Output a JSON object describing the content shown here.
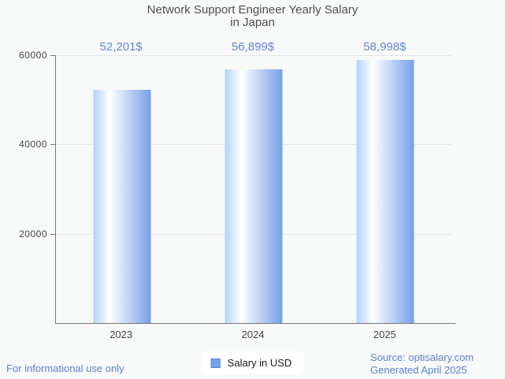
{
  "chart_data": {
    "type": "bar",
    "title": "Network Support Engineer Yearly Salary in Japan",
    "title_lines": [
      "Network Support Engineer Yearly Salary",
      "in Japan"
    ],
    "categories": [
      "2023",
      "2024",
      "2025"
    ],
    "series": [
      {
        "name": "Salary in USD",
        "values": [
          52201,
          56899,
          58998
        ]
      }
    ],
    "value_labels": [
      "52,201$",
      "56,899$",
      "58,998$"
    ],
    "xlabel": "",
    "ylabel": "",
    "ylim": [
      0,
      60000
    ],
    "yticks": [
      60000,
      40000,
      20000
    ],
    "ytick_labels": [
      "60000",
      "40000",
      "20000"
    ],
    "grid": true,
    "legend_position": "bottom"
  },
  "legend": {
    "label": "Salary in USD"
  },
  "footer": {
    "left": "For informational use only",
    "source": "Source: optisalary.com",
    "generated": "Generated April 2025"
  },
  "colors": {
    "background": "#f8f9f9",
    "title_text": "#4f4f4f",
    "axis_text": "#444444",
    "axis_line": "#757575",
    "gridline": "#e6e6e6",
    "annotation_blue": "#6285d6",
    "footer_blue": "#5d7fd2",
    "bar_gradient_left": "#b0d4fa",
    "bar_gradient_mid": "#ffffff",
    "bar_gradient_right": "#779fe8",
    "legend_swatch": "#76a2ea",
    "legend_swatch_border": "#5b85cf"
  }
}
